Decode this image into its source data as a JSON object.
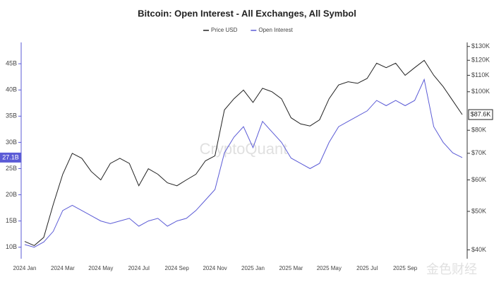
{
  "chart_data": {
    "type": "line",
    "title": "Bitcoin: Open Interest - All Exchanges, All Symbol",
    "watermark": "CryptoQuant",
    "source_watermark": "金色财经",
    "categories": [
      "2024 Jan",
      null,
      null,
      null,
      "2024 Mar",
      null,
      null,
      null,
      "2024 May",
      null,
      null,
      null,
      "2024 Jul",
      null,
      null,
      null,
      "2024 Sep",
      null,
      null,
      null,
      "2024 Nov",
      null,
      null,
      null,
      "2025 Jan",
      null,
      null,
      null,
      "2025 Mar",
      null,
      null,
      null,
      "2025 May",
      null,
      null,
      null,
      "2025 Jul",
      null,
      null,
      null,
      "2025 Sep",
      null,
      null,
      null,
      null,
      null,
      null
    ],
    "series": [
      {
        "name": "Price USD",
        "color": "#222222",
        "axis": "y2",
        "values": [
          42000,
          41000,
          43000,
          52000,
          62000,
          70000,
          68000,
          63000,
          60000,
          66000,
          68000,
          66000,
          58000,
          64000,
          62000,
          59000,
          58000,
          60000,
          62000,
          67000,
          69000,
          90000,
          96000,
          101000,
          94000,
          102000,
          100000,
          96000,
          86000,
          83000,
          82000,
          85000,
          96000,
          104000,
          106000,
          105000,
          108000,
          118000,
          115000,
          118000,
          110000,
          115000,
          120000,
          110000,
          103000,
          95000,
          87600
        ]
      },
      {
        "name": "Open Interest",
        "color": "#5b5bd6",
        "values": [
          10.5,
          10,
          11,
          13,
          17,
          18,
          17,
          16,
          15,
          14.5,
          15,
          15.5,
          14,
          15,
          15.5,
          14,
          15,
          15.5,
          17,
          19,
          21,
          28,
          31,
          33,
          29,
          34,
          32,
          30,
          27,
          26,
          25,
          26,
          30,
          33,
          34,
          35,
          36,
          38,
          37,
          38,
          37,
          38,
          42,
          33,
          30,
          28,
          27.1
        ]
      }
    ],
    "ylim": [
      7.8,
      48.8
    ],
    "yticks": [
      {
        "value": 10,
        "label": "10B"
      },
      {
        "value": 15,
        "label": "15B"
      },
      {
        "value": 20,
        "label": "20B"
      },
      {
        "value": 25,
        "label": "25B"
      },
      {
        "value": 30,
        "label": "30B"
      },
      {
        "value": 35,
        "label": "35B"
      },
      {
        "value": 40,
        "label": "40B"
      },
      {
        "value": 45,
        "label": "45B"
      }
    ],
    "y2lim": [
      38000,
      132000
    ],
    "y2_log": true,
    "y2ticks": [
      {
        "value": 40000,
        "label": "$40K"
      },
      {
        "value": 50000,
        "label": "$50K"
      },
      {
        "value": 60000,
        "label": "$60K"
      },
      {
        "value": 70000,
        "label": "$70K"
      },
      {
        "value": 80000,
        "label": "$80K"
      },
      {
        "value": 100000,
        "label": "$100K"
      },
      {
        "value": 110000,
        "label": "$110K"
      },
      {
        "value": 120000,
        "label": "$120K"
      },
      {
        "value": 130000,
        "label": "$130K"
      }
    ],
    "annotations": [
      {
        "text": "27.1B",
        "value": 27.1,
        "axis": "y"
      },
      {
        "text": "$87.6K",
        "value": 87600,
        "axis": "y2"
      }
    ],
    "legend": "top"
  }
}
